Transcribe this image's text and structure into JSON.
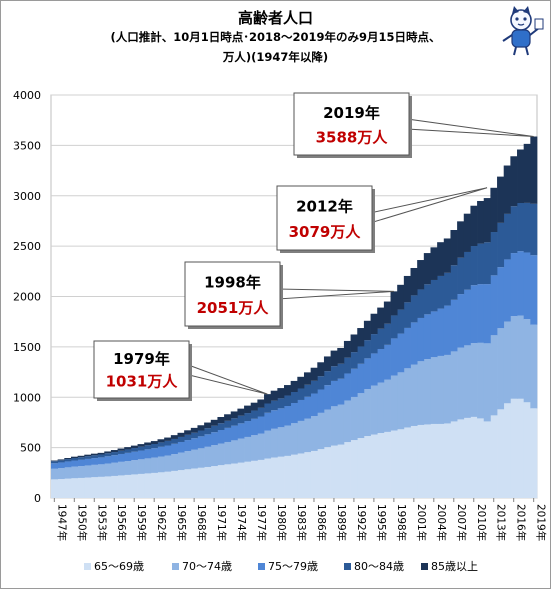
{
  "title_lines": [
    "高齢者人口",
    "(人口推計、10月1日時点･2018〜2019年のみ9月15日時点、",
    "万人)(1947年以降)"
  ],
  "chart_data": {
    "type": "area",
    "stacked": true,
    "ylim": [
      0,
      4000
    ],
    "ytick_step": 500,
    "x_start": 1947,
    "x_end": 2019,
    "xtick_labels": [
      "1947年",
      "1950年",
      "1953年",
      "1956年",
      "1959年",
      "1962年",
      "1965年",
      "1968年",
      "1971年",
      "1974年",
      "1977年",
      "1980年",
      "1983年",
      "1986年",
      "1989年",
      "1992年",
      "1995年",
      "1998年",
      "2001年",
      "2004年",
      "2007年",
      "2010年",
      "2013年",
      "2016年",
      "2019年"
    ],
    "totals": [
      372,
      383,
      397,
      410,
      419,
      430,
      440,
      448,
      462,
      476,
      491,
      505,
      520,
      535,
      551,
      565,
      583,
      600,
      624,
      647,
      672,
      696,
      722,
      749,
      776,
      804,
      831,
      859,
      887,
      917,
      946,
      978,
      1031,
      1065,
      1091,
      1121,
      1162,
      1203,
      1247,
      1293,
      1347,
      1405,
      1463,
      1489,
      1559,
      1623,
      1687,
      1759,
      1829,
      1890,
      1950,
      2051,
      2116,
      2204,
      2283,
      2362,
      2431,
      2488,
      2539,
      2576,
      2660,
      2746,
      2822,
      2901,
      2948,
      2977,
      3079,
      3190,
      3300,
      3392,
      3459,
      3515,
      3588
    ],
    "series": [
      {
        "name": "65〜69歳",
        "color": "#cfe0f4",
        "values": [
          185,
          188,
          192,
          196,
          199,
          203,
          207,
          210,
          214,
          219,
          224,
          229,
          234,
          239,
          244,
          249,
          255,
          261,
          269,
          277,
          285,
          293,
          300,
          308,
          317,
          326,
          334,
          342,
          351,
          360,
          369,
          378,
          392,
          402,
          410,
          418,
          430,
          442,
          455,
          467,
          485,
          505,
          520,
          530,
          555,
          575,
          595,
          615,
          630,
          645,
          656,
          670,
          682,
          700,
          715,
          725,
          730,
          735,
          735,
          740,
          760,
          780,
          795,
          805,
          790,
          760,
          820,
          880,
          940,
          985,
          985,
          950,
          890
        ]
      },
      {
        "name": "70〜74歳",
        "color": "#8fb4e3",
        "values": [
          105,
          108,
          112,
          115,
          117,
          120,
          122,
          124,
          128,
          131,
          135,
          138,
          142,
          145,
          149,
          152,
          157,
          161,
          167,
          173,
          180,
          186,
          193,
          200,
          207,
          215,
          222,
          230,
          238,
          246,
          254,
          262,
          276,
          285,
          292,
          301,
          312,
          323,
          334,
          347,
          360,
          373,
          390,
          398,
          413,
          428,
          445,
          465,
          485,
          501,
          518,
          545,
          565,
          587,
          610,
          632,
          648,
          662,
          675,
          680,
          695,
          712,
          720,
          732,
          750,
          775,
          795,
          805,
          812,
          820,
          825,
          825,
          830
        ]
      },
      {
        "name": "75〜79歳",
        "color": "#4f86d6",
        "values": [
          55,
          57,
          59,
          61,
          63,
          65,
          67,
          69,
          72,
          75,
          78,
          81,
          84,
          87,
          90,
          93,
          96,
          99,
          102,
          106,
          110,
          114,
          119,
          124,
          129,
          134,
          140,
          146,
          152,
          158,
          163,
          169,
          178,
          184,
          188,
          194,
          201,
          208,
          216,
          223,
          232,
          242,
          252,
          256,
          268,
          280,
          292,
          306,
          320,
          333,
          346,
          369,
          385,
          401,
          418,
          430,
          445,
          455,
          470,
          490,
          512,
          532,
          552,
          575,
          583,
          588,
          595,
          606,
          616,
          626,
          640,
          662,
          690
        ]
      },
      {
        "name": "80〜84歳",
        "color": "#2c5a97",
        "values": [
          20,
          21,
          23,
          25,
          26,
          27,
          28,
          29,
          30,
          31,
          32,
          34,
          36,
          38,
          40,
          42,
          44,
          46,
          48,
          50,
          52,
          55,
          58,
          61,
          64,
          67,
          70,
          73,
          76,
          79,
          82,
          86,
          92,
          95,
          99,
          104,
          109,
          114,
          119,
          126,
          132,
          139,
          146,
          149,
          157,
          165,
          172,
          181,
          192,
          201,
          210,
          228,
          238,
          254,
          268,
          283,
          298,
          312,
          324,
          325,
          343,
          361,
          375,
          389,
          402,
          415,
          430,
          440,
          452,
          465,
          478,
          492,
          510
        ]
      },
      {
        "name": "85歳以上",
        "color": "#1c3457",
        "values": [
          7,
          9,
          11,
          13,
          14,
          15,
          16,
          16,
          18,
          20,
          22,
          23,
          24,
          26,
          28,
          29,
          31,
          33,
          38,
          41,
          45,
          48,
          52,
          56,
          59,
          62,
          65,
          68,
          70,
          74,
          78,
          83,
          93,
          99,
          102,
          104,
          110,
          116,
          123,
          130,
          138,
          146,
          155,
          156,
          166,
          175,
          183,
          192,
          202,
          210,
          220,
          239,
          246,
          262,
          272,
          292,
          310,
          324,
          335,
          341,
          350,
          361,
          380,
          400,
          423,
          439,
          439,
          459,
          480,
          496,
          531,
          586,
          668
        ]
      }
    ],
    "callouts": [
      {
        "year": 1979,
        "year_label": "1979年",
        "value_label": "1031万人",
        "value": 1031
      },
      {
        "year": 1998,
        "year_label": "1998年",
        "value_label": "2051万人",
        "value": 2051
      },
      {
        "year": 2012,
        "year_label": "2012年",
        "value_label": "3079万人",
        "value": 3079
      },
      {
        "year": 2019,
        "year_label": "2019年",
        "value_label": "3588万人",
        "value": 3588
      }
    ],
    "legend_position": "bottom",
    "accent_color": "#c00000"
  }
}
